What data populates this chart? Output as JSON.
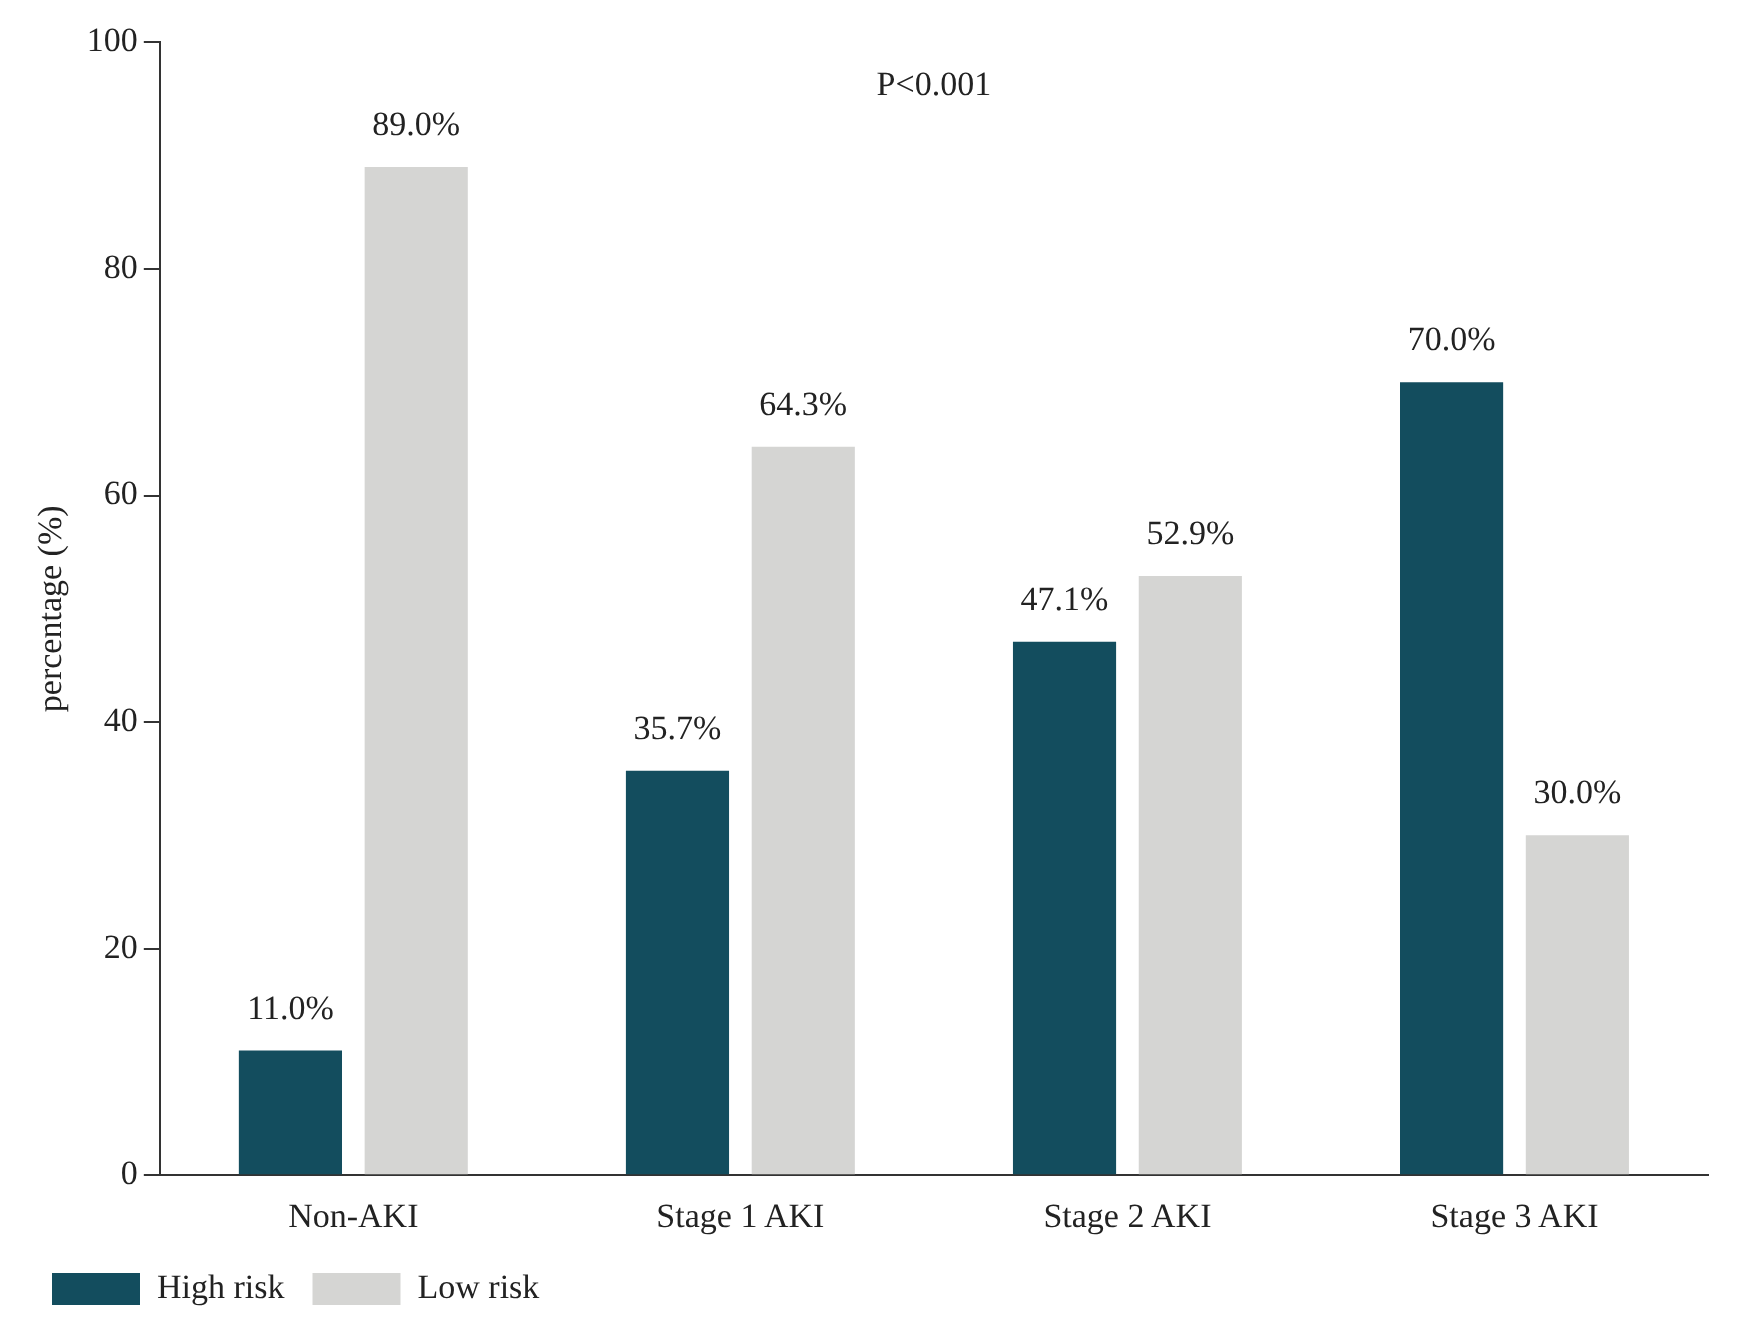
{
  "chart_data": {
    "type": "bar",
    "ylabel": "percentage (%)",
    "annotations": [
      "P<0.001"
    ],
    "categories": [
      "Non-AKI",
      "Stage 1 AKI",
      "Stage 2 AKI",
      "Stage 3 AKI"
    ],
    "series": [
      {
        "name": "High risk",
        "color": "#134d5e",
        "values": [
          11.0,
          35.7,
          47.1,
          70.0
        ],
        "value_labels": [
          "11.0%",
          "35.7%",
          "47.1%",
          "70.0%"
        ]
      },
      {
        "name": "Low risk",
        "color": "#d5d5d3",
        "values": [
          89.0,
          64.3,
          52.9,
          30.0
        ],
        "value_labels": [
          "89.0%",
          "64.3%",
          "52.9%",
          "30.0%"
        ]
      }
    ],
    "ylim": [
      0,
      100
    ],
    "yticks": [
      0,
      20,
      40,
      60,
      80,
      100
    ],
    "grid": false,
    "legend": "bottom left"
  }
}
